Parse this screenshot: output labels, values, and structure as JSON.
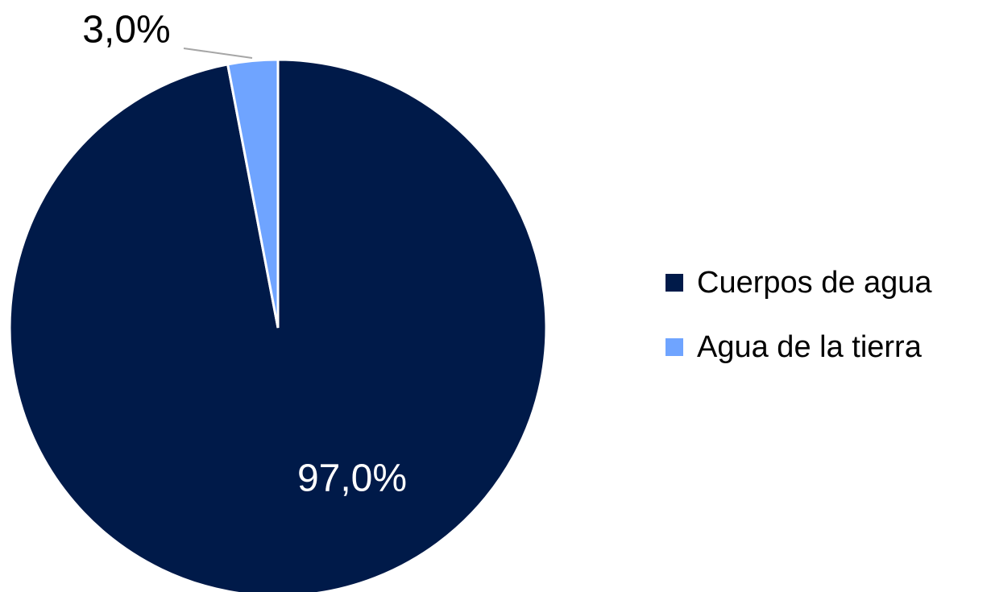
{
  "chart_data": {
    "type": "pie",
    "categories": [
      "Cuerpos de agua",
      "Agua de la tierra"
    ],
    "values": [
      97,
      3
    ],
    "value_labels": [
      "97,0%",
      "3,0%"
    ],
    "colors": [
      "#001a49",
      "#6fa4ff"
    ],
    "legend": "right"
  }
}
